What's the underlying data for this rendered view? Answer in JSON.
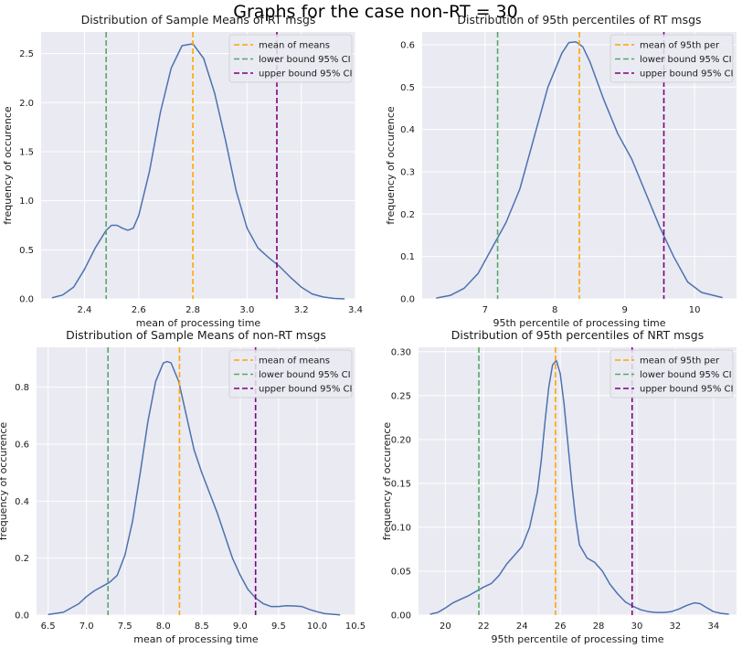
{
  "suptitle": "Graphs for the case non-RT = 30",
  "colors": {
    "line": "#4c72b0",
    "mean": "#ffa500",
    "lower": "#55a868",
    "upper": "#800080",
    "panel_bg": "#eaeaf2",
    "grid": "#ffffff"
  },
  "chart_data": [
    {
      "type": "line",
      "title": "Distribution of Sample Means of RT msgs",
      "xlabel": "mean of processing time",
      "ylabel": "frequency of occurence",
      "xlim": [
        2.24,
        3.4
      ],
      "ylim": [
        0,
        2.72
      ],
      "xticks": [
        2.4,
        2.6,
        2.8,
        3.0,
        3.2,
        3.4
      ],
      "xtick_labels": [
        "2.4",
        "2.6",
        "2.8",
        "3.0",
        "3.2",
        "3.4"
      ],
      "yticks": [
        0,
        0.5,
        1.0,
        1.5,
        2.0,
        2.5
      ],
      "ytick_labels": [
        "0.0",
        "0.5",
        "1.0",
        "1.5",
        "2.0",
        "2.5"
      ],
      "grid": true,
      "legend_position": "top-right",
      "legend": [
        "mean of means",
        "lower bound 95% CI",
        "upper bound 95% CI"
      ],
      "vlines": [
        2.8,
        2.48,
        3.11
      ],
      "x": [
        2.28,
        2.32,
        2.36,
        2.4,
        2.44,
        2.48,
        2.5,
        2.52,
        2.54,
        2.56,
        2.58,
        2.6,
        2.64,
        2.68,
        2.72,
        2.76,
        2.8,
        2.84,
        2.88,
        2.92,
        2.96,
        3.0,
        3.04,
        3.08,
        3.12,
        3.16,
        3.2,
        3.24,
        3.28,
        3.32,
        3.36
      ],
      "y": [
        0.01,
        0.04,
        0.12,
        0.3,
        0.52,
        0.7,
        0.75,
        0.75,
        0.72,
        0.7,
        0.72,
        0.85,
        1.3,
        1.9,
        2.35,
        2.58,
        2.6,
        2.45,
        2.1,
        1.62,
        1.1,
        0.72,
        0.52,
        0.42,
        0.33,
        0.22,
        0.12,
        0.05,
        0.02,
        0.005,
        0.0
      ]
    },
    {
      "type": "line",
      "title": "Distribution of 95th percentiles of RT msgs",
      "xlabel": "95th percentile of processing time",
      "ylabel": "frequency of occurence",
      "xlim": [
        6.1,
        10.6
      ],
      "ylim": [
        0,
        0.63
      ],
      "xticks": [
        7,
        8,
        9,
        10
      ],
      "xtick_labels": [
        "7",
        "8",
        "9",
        "10"
      ],
      "yticks": [
        0,
        0.1,
        0.2,
        0.3,
        0.4,
        0.5,
        0.6
      ],
      "ytick_labels": [
        "0.0",
        "0.1",
        "0.2",
        "0.3",
        "0.4",
        "0.5",
        "0.6"
      ],
      "grid": true,
      "legend_position": "top-right",
      "legend": [
        "mean of 95th per",
        "lower bound 95% CI",
        "upper bound 95% CI"
      ],
      "vlines": [
        8.35,
        7.18,
        9.56
      ],
      "x": [
        6.3,
        6.5,
        6.7,
        6.9,
        7.1,
        7.3,
        7.5,
        7.7,
        7.9,
        8.1,
        8.2,
        8.3,
        8.4,
        8.5,
        8.7,
        8.9,
        9.1,
        9.3,
        9.5,
        9.7,
        9.9,
        10.1,
        10.4
      ],
      "y": [
        0.002,
        0.008,
        0.025,
        0.06,
        0.12,
        0.18,
        0.26,
        0.38,
        0.5,
        0.58,
        0.605,
        0.607,
        0.595,
        0.56,
        0.47,
        0.39,
        0.33,
        0.25,
        0.17,
        0.1,
        0.04,
        0.015,
        0.003
      ]
    },
    {
      "type": "line",
      "title": "Distribution of Sample Means of non-RT msgs",
      "xlabel": "mean of processing time",
      "ylabel": "frequency of occurence",
      "xlim": [
        6.35,
        10.5
      ],
      "ylim": [
        0,
        0.94
      ],
      "xticks": [
        6.5,
        7.0,
        7.5,
        8.0,
        8.5,
        9.0,
        9.5,
        10.0,
        10.5
      ],
      "xtick_labels": [
        "6.5",
        "7.0",
        "7.5",
        "8.0",
        "8.5",
        "9.0",
        "9.5",
        "10.0",
        "10.5"
      ],
      "yticks": [
        0,
        0.2,
        0.4,
        0.6,
        0.8
      ],
      "ytick_labels": [
        "0.0",
        "0.2",
        "0.4",
        "0.6",
        "0.8"
      ],
      "grid": true,
      "legend_position": "top-right",
      "legend": [
        "mean of means",
        "lower bound 95% CI",
        "upper bound 95% CI"
      ],
      "vlines": [
        8.21,
        7.28,
        9.2
      ],
      "x": [
        6.5,
        6.7,
        6.9,
        7.0,
        7.1,
        7.2,
        7.3,
        7.4,
        7.5,
        7.6,
        7.7,
        7.8,
        7.9,
        8.0,
        8.05,
        8.1,
        8.2,
        8.3,
        8.4,
        8.5,
        8.6,
        8.7,
        8.8,
        8.9,
        9.0,
        9.1,
        9.2,
        9.3,
        9.4,
        9.5,
        9.6,
        9.7,
        9.8,
        9.9,
        10.0,
        10.1,
        10.3
      ],
      "y": [
        0.002,
        0.01,
        0.04,
        0.065,
        0.085,
        0.1,
        0.115,
        0.14,
        0.21,
        0.33,
        0.5,
        0.68,
        0.82,
        0.885,
        0.89,
        0.885,
        0.82,
        0.7,
        0.58,
        0.5,
        0.43,
        0.36,
        0.28,
        0.2,
        0.14,
        0.09,
        0.06,
        0.04,
        0.03,
        0.03,
        0.033,
        0.032,
        0.03,
        0.02,
        0.012,
        0.005,
        0.001
      ]
    },
    {
      "type": "line",
      "title": "Distribution of 95th percentiles of NRT msgs",
      "xlabel": "95th percentile of processing time",
      "ylabel": "frequency of occurence",
      "xlim": [
        18.6,
        35.2
      ],
      "ylim": [
        0,
        0.305
      ],
      "xticks": [
        20,
        22,
        24,
        26,
        28,
        30,
        32,
        34
      ],
      "xtick_labels": [
        "20",
        "22",
        "24",
        "26",
        "28",
        "30",
        "32",
        "34"
      ],
      "yticks": [
        0,
        0.05,
        0.1,
        0.15,
        0.2,
        0.25,
        0.3
      ],
      "ytick_labels": [
        "0.00",
        "0.05",
        "0.10",
        "0.15",
        "0.20",
        "0.25",
        "0.30"
      ],
      "grid": true,
      "legend_position": "top-right",
      "legend": [
        "mean of 95th per",
        "lower bound 95% CI",
        "upper bound 95% CI"
      ],
      "vlines": [
        25.75,
        21.75,
        29.75
      ],
      "x": [
        19.2,
        19.6,
        20.0,
        20.4,
        20.8,
        21.2,
        21.6,
        22.0,
        22.4,
        22.8,
        23.2,
        23.6,
        24.0,
        24.4,
        24.8,
        25.0,
        25.2,
        25.4,
        25.6,
        25.8,
        26.0,
        26.2,
        26.4,
        26.6,
        26.8,
        27.0,
        27.4,
        27.8,
        28.2,
        28.6,
        29.0,
        29.4,
        29.8,
        30.2,
        30.6,
        31.0,
        31.4,
        31.8,
        32.2,
        32.6,
        33.0,
        33.3,
        33.6,
        34.0,
        34.4,
        34.8
      ],
      "y": [
        0.001,
        0.003,
        0.008,
        0.014,
        0.018,
        0.022,
        0.027,
        0.032,
        0.036,
        0.045,
        0.058,
        0.068,
        0.078,
        0.1,
        0.14,
        0.175,
        0.22,
        0.26,
        0.285,
        0.29,
        0.275,
        0.24,
        0.195,
        0.15,
        0.11,
        0.08,
        0.065,
        0.06,
        0.05,
        0.035,
        0.024,
        0.015,
        0.01,
        0.006,
        0.004,
        0.003,
        0.003,
        0.004,
        0.007,
        0.011,
        0.014,
        0.013,
        0.009,
        0.004,
        0.002,
        0.001
      ]
    }
  ]
}
